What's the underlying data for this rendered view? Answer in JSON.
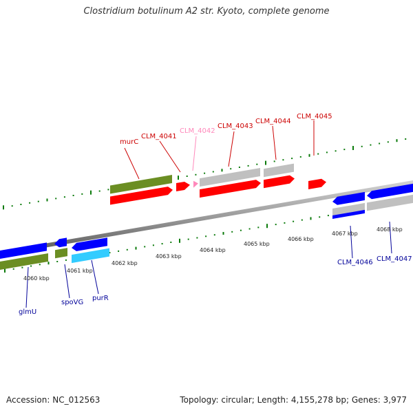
{
  "title": "Clostridium botulinum A2 str. Kyoto, complete genome",
  "footer": {
    "accession": "Accession: NC_012563",
    "summary": "Topology: circular; Length: 4,155,278 bp; Genes: 3,977"
  },
  "kbp_labels": [
    {
      "text": "4060 kbp"
    },
    {
      "text": "4061 kbp"
    },
    {
      "text": "4062 kbp"
    },
    {
      "text": "4063 kbp"
    },
    {
      "text": "4064 kbp"
    },
    {
      "text": "4065 kbp"
    },
    {
      "text": "4066 kbp"
    },
    {
      "text": "4067 kbp"
    },
    {
      "text": "4068 kbp"
    }
  ],
  "gene_labels": {
    "murC": "murC",
    "CLM_4041": "CLM_4041",
    "CLM_4042": "CLM_4042",
    "CLM_4043": "CLM_4043",
    "CLM_4044": "CLM_4044",
    "CLM_4045": "CLM_4045",
    "glmU": "glmU",
    "spoVG": "spoVG",
    "purR": "purR",
    "CLM_4046": "CLM_4046",
    "CLM_4047": "CLM_4047"
  },
  "colors": {
    "forward_cds": "#ff0000",
    "reverse_cds": "#0000ff",
    "gene": "#6b8e23",
    "other": "#c0c0c0",
    "pseudo": "#ff88bb",
    "rna": "#33ccff",
    "tick": "#0a7a0a",
    "label_forward": "#cc0000",
    "label_reverse": "#000099",
    "label_pseudo": "#ff88bb"
  }
}
